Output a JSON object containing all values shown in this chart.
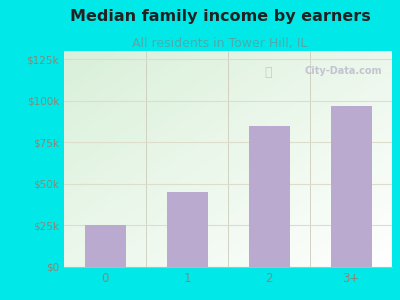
{
  "title": "Median family income by earners",
  "subtitle": "All residents in Tower Hill, IL",
  "categories": [
    "0",
    "1",
    "2",
    "3+"
  ],
  "values": [
    25000,
    45000,
    85000,
    97000
  ],
  "bar_color": "#bbaad0",
  "title_color": "#222222",
  "subtitle_color": "#4aacac",
  "bg_color": "#00e8e8",
  "yticks": [
    0,
    25000,
    50000,
    75000,
    100000,
    125000
  ],
  "ytick_labels": [
    "$0",
    "$25k",
    "$50k",
    "$75k",
    "$100k",
    "$125k"
  ],
  "ylim": [
    0,
    130000
  ],
  "watermark": "City-Data.com",
  "title_fontsize": 11.5,
  "subtitle_fontsize": 9,
  "tick_label_color": "#888877",
  "grid_color": "#ddddcc",
  "plot_bg_color_tl": "#d8eed8",
  "plot_bg_color_br": "#ffffff"
}
